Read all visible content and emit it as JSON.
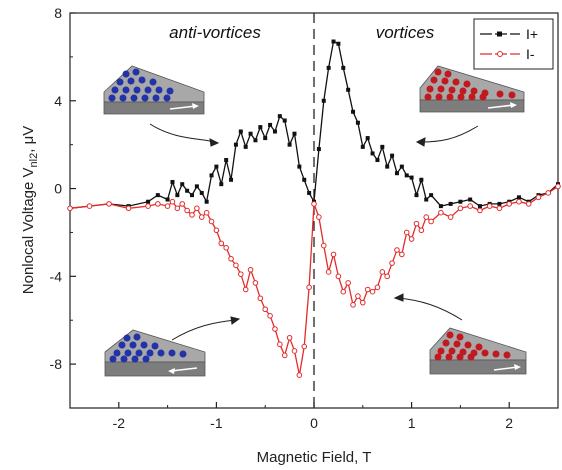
{
  "chart_data": {
    "type": "line",
    "title": "",
    "xlabel": "Magnetic Field, T",
    "ylabel_main": "Nonlocal Voltage V",
    "ylabel_sub": "nl2",
    "ylabel_unit": ", μV",
    "xlim": [
      -2.5,
      2.5
    ],
    "ylim": [
      -10,
      8
    ],
    "xticks": [
      -2,
      -1,
      0,
      1,
      2
    ],
    "yticks": [
      -8,
      -4,
      0,
      4,
      8
    ],
    "xtick_labels": [
      "-2",
      "-1",
      "0",
      "1",
      "2"
    ],
    "ytick_labels": [
      "-8",
      "-4",
      "0",
      "4",
      "8"
    ],
    "grid": false,
    "legend_position": "top-right",
    "annotations": {
      "left": "anti-vortices",
      "right": "vortices"
    },
    "zero_field_line": "dashed vertical at x = 0",
    "series": [
      {
        "name": "I+",
        "color": "#111111",
        "marker": "filled-square",
        "x": [
          -2.5,
          -2.3,
          -2.1,
          -1.9,
          -1.7,
          -1.6,
          -1.5,
          -1.45,
          -1.4,
          -1.35,
          -1.3,
          -1.25,
          -1.2,
          -1.15,
          -1.1,
          -1.05,
          -1.0,
          -0.95,
          -0.9,
          -0.85,
          -0.8,
          -0.75,
          -0.7,
          -0.65,
          -0.6,
          -0.55,
          -0.5,
          -0.45,
          -0.4,
          -0.35,
          -0.3,
          -0.25,
          -0.2,
          -0.15,
          -0.1,
          -0.05,
          0.0,
          0.05,
          0.1,
          0.15,
          0.2,
          0.25,
          0.3,
          0.35,
          0.4,
          0.45,
          0.5,
          0.55,
          0.6,
          0.65,
          0.7,
          0.75,
          0.8,
          0.85,
          0.9,
          0.95,
          1.0,
          1.05,
          1.1,
          1.15,
          1.2,
          1.3,
          1.4,
          1.5,
          1.6,
          1.7,
          1.8,
          1.9,
          2.0,
          2.1,
          2.2,
          2.3,
          2.4,
          2.5
        ],
        "y": [
          -0.9,
          -0.8,
          -0.7,
          -0.8,
          -0.6,
          -0.3,
          -0.5,
          0.3,
          -0.3,
          0.2,
          -0.1,
          -0.3,
          0.1,
          -0.2,
          -0.6,
          0.6,
          1.0,
          0.2,
          1.3,
          0.4,
          2.0,
          2.6,
          1.9,
          2.5,
          2.2,
          2.8,
          2.3,
          2.9,
          2.6,
          3.3,
          3.1,
          2.0,
          2.5,
          1.0,
          0.4,
          -0.2,
          -0.6,
          1.8,
          4.0,
          5.5,
          6.7,
          6.6,
          5.5,
          4.5,
          3.5,
          3.0,
          1.9,
          2.3,
          1.6,
          1.3,
          1.9,
          1.0,
          1.5,
          0.7,
          1.0,
          0.6,
          0.5,
          -0.3,
          0.4,
          -0.5,
          -0.3,
          -0.8,
          -0.7,
          -0.6,
          -0.5,
          -0.8,
          -0.7,
          -0.7,
          -0.6,
          -0.4,
          -0.6,
          -0.3,
          -0.2,
          0.2
        ]
      },
      {
        "name": "I-",
        "color": "#e32c2c",
        "marker": "open-circle",
        "x": [
          -2.5,
          -2.3,
          -2.1,
          -1.9,
          -1.7,
          -1.6,
          -1.5,
          -1.45,
          -1.4,
          -1.35,
          -1.3,
          -1.25,
          -1.2,
          -1.15,
          -1.1,
          -1.05,
          -1.0,
          -0.95,
          -0.9,
          -0.85,
          -0.8,
          -0.75,
          -0.7,
          -0.65,
          -0.6,
          -0.55,
          -0.5,
          -0.45,
          -0.4,
          -0.35,
          -0.3,
          -0.25,
          -0.2,
          -0.15,
          -0.1,
          -0.05,
          0.0,
          0.05,
          0.1,
          0.15,
          0.2,
          0.25,
          0.3,
          0.35,
          0.4,
          0.45,
          0.5,
          0.55,
          0.6,
          0.65,
          0.7,
          0.75,
          0.8,
          0.85,
          0.9,
          0.95,
          1.0,
          1.05,
          1.1,
          1.15,
          1.2,
          1.3,
          1.4,
          1.5,
          1.6,
          1.7,
          1.8,
          1.9,
          2.0,
          2.1,
          2.2,
          2.3,
          2.4,
          2.5
        ],
        "y": [
          -0.9,
          -0.8,
          -0.7,
          -0.9,
          -0.8,
          -0.7,
          -0.8,
          -0.6,
          -0.9,
          -0.7,
          -1.0,
          -1.2,
          -0.9,
          -1.3,
          -1.1,
          -1.5,
          -1.9,
          -2.5,
          -2.7,
          -3.2,
          -3.5,
          -3.9,
          -4.6,
          -3.7,
          -4.3,
          -5.0,
          -5.5,
          -5.8,
          -6.4,
          -7.1,
          -7.6,
          -6.8,
          -7.4,
          -8.5,
          -7.2,
          -4.5,
          -0.7,
          -1.3,
          -2.6,
          -3.8,
          -3.0,
          -4.0,
          -4.7,
          -4.3,
          -5.3,
          -4.9,
          -5.2,
          -4.6,
          -4.7,
          -4.5,
          -3.8,
          -4.0,
          -3.4,
          -2.8,
          -3.0,
          -2.0,
          -2.3,
          -1.6,
          -1.9,
          -1.3,
          -1.5,
          -1.1,
          -1.3,
          -0.9,
          -0.8,
          -1.0,
          -0.8,
          -0.9,
          -0.7,
          -0.6,
          -0.7,
          -0.4,
          -0.2,
          0.1
        ]
      }
    ]
  },
  "colors": {
    "blue_dot": "#2233aa",
    "red_dot": "#c2181f",
    "slab": "#8c8c8c",
    "slab_top": "#b5b5b5"
  }
}
